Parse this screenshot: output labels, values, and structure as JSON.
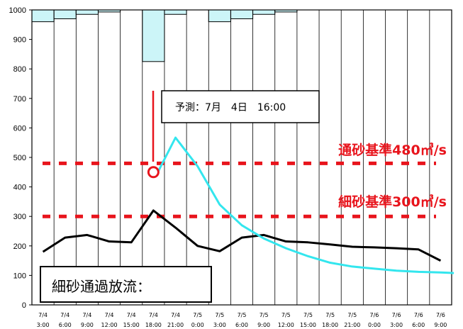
{
  "chart_data": {
    "type": "line",
    "title": "",
    "xlabel": "",
    "ylabel": "",
    "ylim": [
      0,
      1000
    ],
    "y_ticks": [
      0,
      100,
      200,
      300,
      400,
      500,
      600,
      700,
      800,
      900,
      1000
    ],
    "grid": "vertical lines at each x category",
    "categories": [
      [
        "7/4",
        "3:00"
      ],
      [
        "7/4",
        "6:00"
      ],
      [
        "7/4",
        "9:00"
      ],
      [
        "7/4",
        "12:00"
      ],
      [
        "7/4",
        "15:00"
      ],
      [
        "7/4",
        "18:00"
      ],
      [
        "7/4",
        "21:00"
      ],
      [
        "7/5",
        "0:00"
      ],
      [
        "7/5",
        "3:00"
      ],
      [
        "7/5",
        "6:00"
      ],
      [
        "7/5",
        "9:00"
      ],
      [
        "7/5",
        "12:00"
      ],
      [
        "7/5",
        "15:00"
      ],
      [
        "7/5",
        "18:00"
      ],
      [
        "7/5",
        "21:00"
      ],
      [
        "7/6",
        "0:00"
      ],
      [
        "7/6",
        "3:00"
      ],
      [
        "7/6",
        "6:00"
      ],
      [
        "7/6",
        "9:00"
      ]
    ],
    "rainfall_bars": {
      "color": "#ccf5f8",
      "top_values": [
        960,
        970,
        985,
        993,
        1000,
        825,
        985,
        1000,
        960,
        970,
        985,
        993,
        1000,
        1000,
        1000,
        1000,
        1000,
        1000,
        1000
      ]
    },
    "series": [
      {
        "color": "#000000",
        "values": [
          180,
          228,
          237,
          215,
          212,
          320,
          262,
          200,
          182,
          228,
          237,
          215,
          212,
          205,
          197,
          195,
          192,
          188,
          150
        ]
      },
      {
        "color": "#33e6ee",
        "points": [
          [
            5.2,
            450
          ],
          [
            6.0,
            567
          ],
          [
            7.0,
            470
          ],
          [
            8.0,
            340
          ],
          [
            9.0,
            270
          ],
          [
            10.0,
            225
          ],
          [
            11.0,
            192
          ],
          [
            12.0,
            165
          ],
          [
            13.0,
            143
          ],
          [
            14.0,
            130
          ],
          [
            15.0,
            123
          ],
          [
            16.0,
            116
          ],
          [
            17.0,
            112
          ],
          [
            18.0,
            110
          ],
          [
            18.6,
            108
          ]
        ]
      }
    ],
    "thresholds": [
      {
        "label": "通砂基準480㎥/s",
        "value": 480,
        "color": "#e8141c"
      },
      {
        "label": "細砂基準300㎥/s",
        "value": 300,
        "color": "#e8141c"
      }
    ],
    "forecast_marker": {
      "x_index": 5,
      "value": 450,
      "color": "#e8141c"
    },
    "annotations": {
      "forecast": "予測：7月　4日　16:00",
      "legend": "細砂通過放流："
    }
  }
}
